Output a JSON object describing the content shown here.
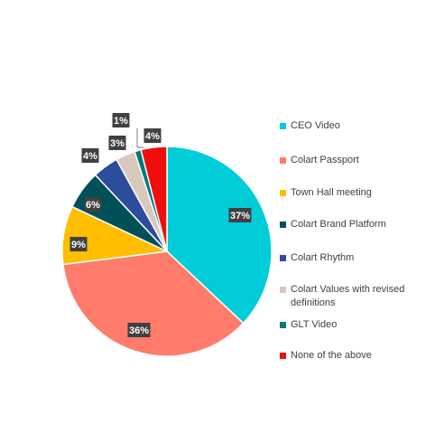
{
  "chart_data": {
    "type": "pie",
    "slices": [
      {
        "label": "CEO Video",
        "value": 37,
        "data_label": "37%",
        "color": "#00CDD8"
      },
      {
        "label": "Colart Passport",
        "value": 36,
        "data_label": "36%",
        "color": "#FF7B6B"
      },
      {
        "label": "Town Hall meeting",
        "value": 9,
        "data_label": "9%",
        "color": "#FFBE00"
      },
      {
        "label": "Colart Brand Platform",
        "value": 6,
        "data_label": "6%",
        "color": "#00505A"
      },
      {
        "label": "Colart Rhythm",
        "value": 4,
        "data_label": "4%",
        "color": "#2E4C9C"
      },
      {
        "label": "Colart Values with revised definitions",
        "value": 3,
        "data_label": "3%",
        "color": "#D9C8BD"
      },
      {
        "label": "GLT Video",
        "value": 1,
        "data_label": "1%",
        "color": "#007A7A"
      },
      {
        "label": "None of the above",
        "value": 4,
        "data_label": "4%",
        "color": "#F20D0D"
      }
    ],
    "legend_position": "right",
    "data_label_style": "dark-box"
  }
}
